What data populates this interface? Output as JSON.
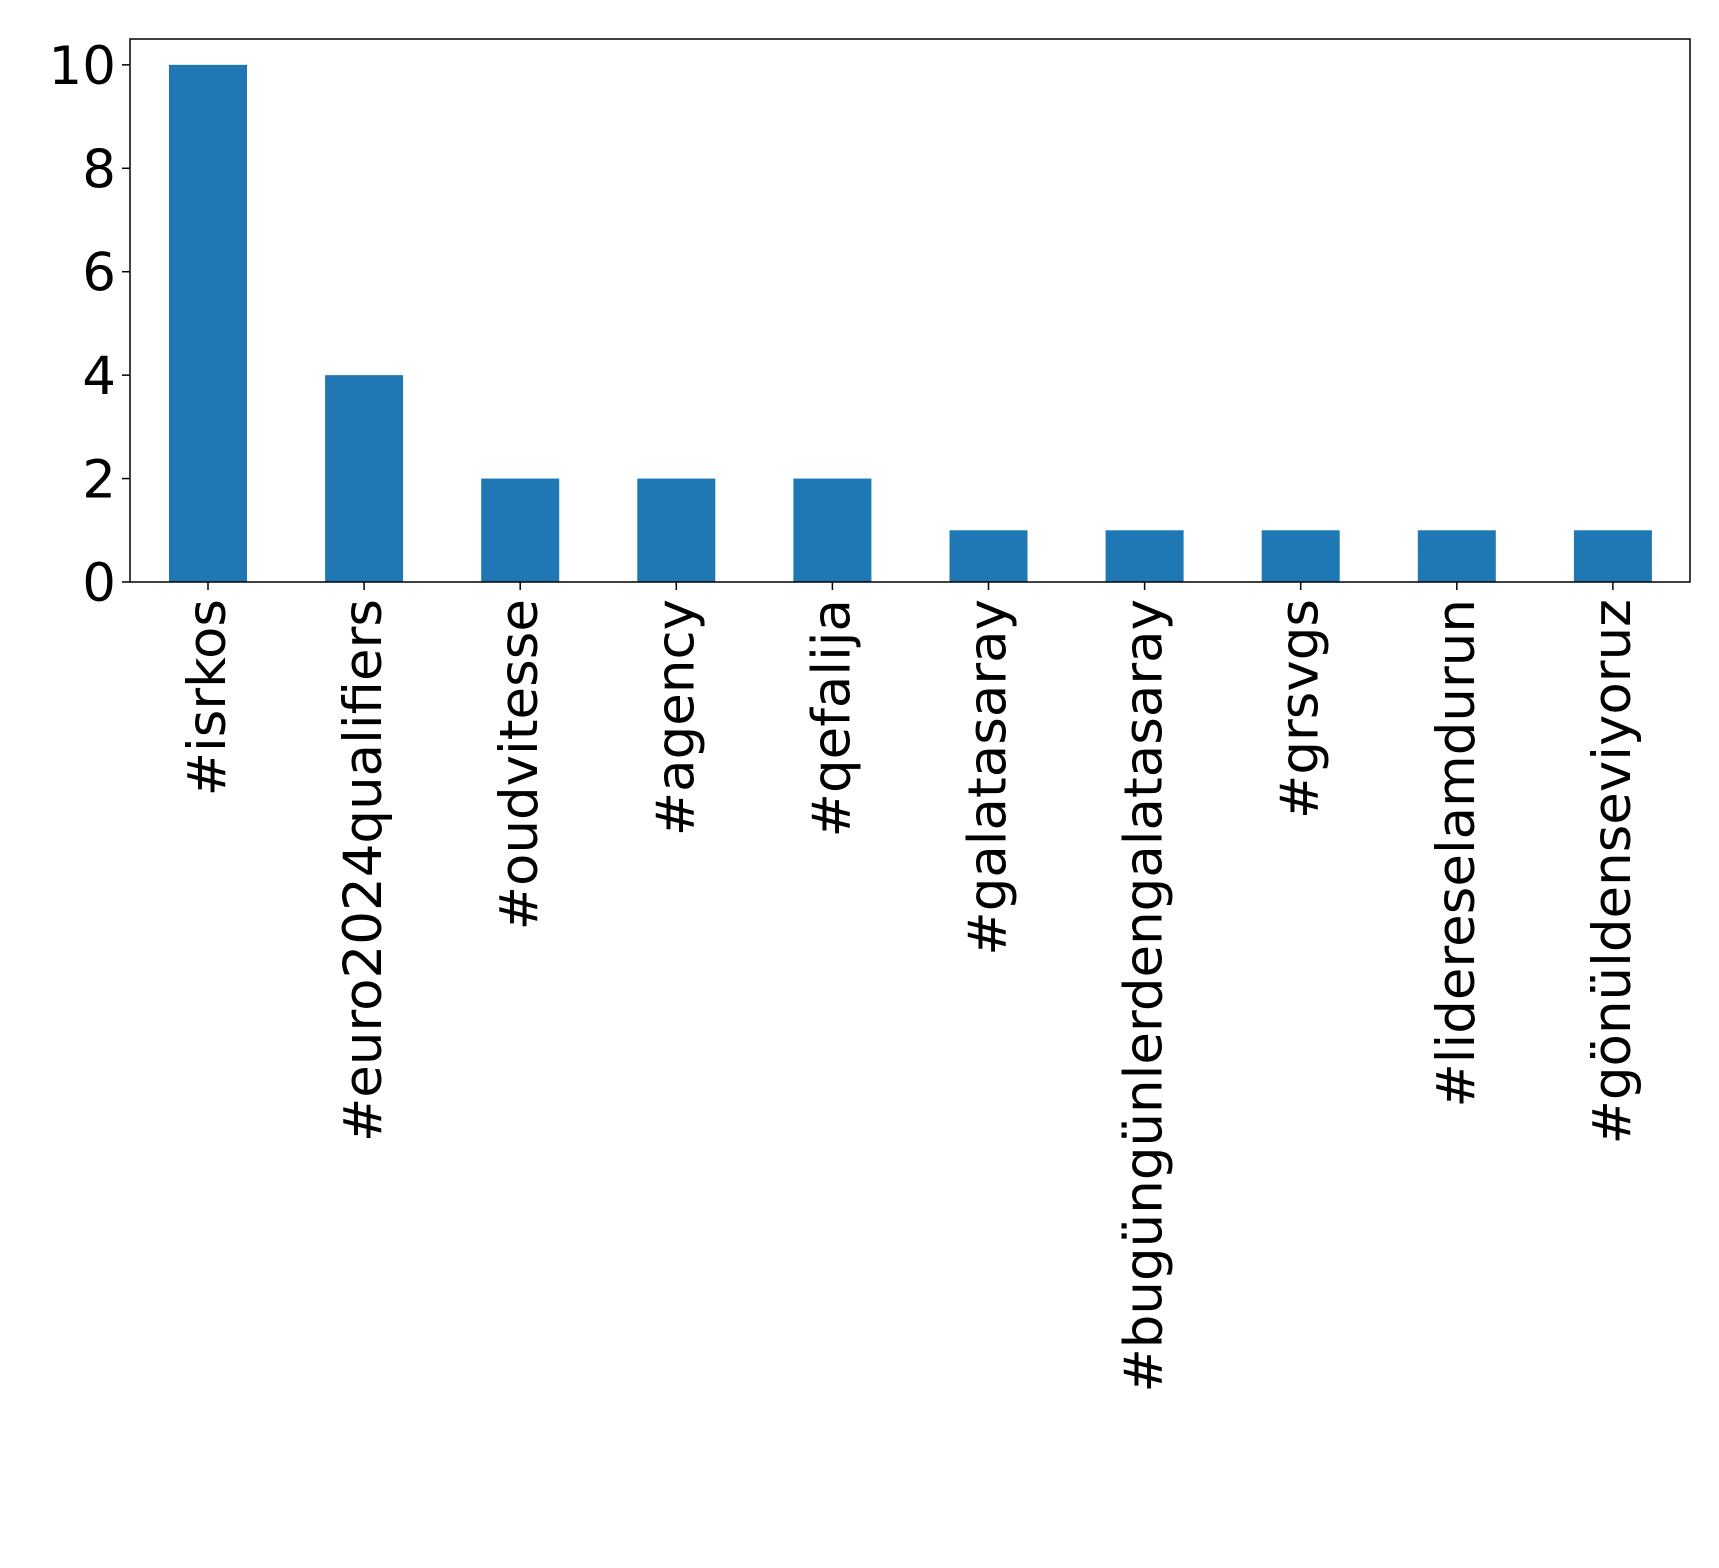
{
  "chart_data": {
    "type": "bar",
    "title": "",
    "xlabel": "",
    "ylabel": "",
    "categories": [
      "#isrkos",
      "#euro2024qualifiers",
      "#oudvitesse",
      "#agency",
      "#qefalija",
      "#galatasaray",
      "#bugüngünlerdengalatasaray",
      "#grsvgs",
      "#lidereselamdurun",
      "#gönüldenseviyoruz"
    ],
    "values": [
      10,
      4,
      2,
      2,
      2,
      1,
      1,
      1,
      1,
      1
    ],
    "yticks": [
      "0",
      "2",
      "4",
      "6",
      "8",
      "10"
    ],
    "ylim": [
      0,
      10.5
    ],
    "grid": false,
    "legend": "none",
    "bar_color": "#1f77b4"
  }
}
